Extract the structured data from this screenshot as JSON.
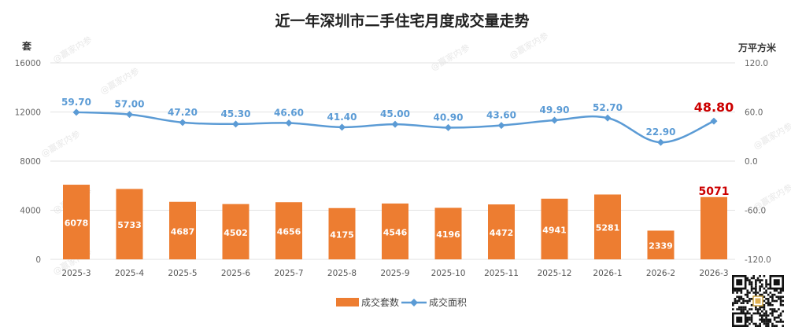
{
  "chart_data": {
    "type": "bar+line",
    "title": "近一年深圳市二手住宅月度成交量走势",
    "y_left_label": "套",
    "y_right_label": "万平方米",
    "y_left_range": [
      0,
      16000
    ],
    "y_left_ticks": [
      "0",
      "4000",
      "8000",
      "12000",
      "16000"
    ],
    "y_right_range": [
      -120,
      120
    ],
    "y_right_ticks": [
      "-120.0",
      "-60.0",
      "0.0",
      "60.0",
      "120.0"
    ],
    "categories": [
      "2025-3",
      "2025-4",
      "2025-5",
      "2025-6",
      "2025-7",
      "2025-8",
      "2025-9",
      "2025-10",
      "2025-11",
      "2025-12",
      "2026-1",
      "2026-2",
      "2026-3"
    ],
    "series": [
      {
        "name": "成交套数",
        "type": "bar",
        "axis": "left",
        "color": "#ed7d31",
        "values": [
          6078,
          5733,
          4687,
          4502,
          4656,
          4175,
          4546,
          4196,
          4472,
          4941,
          5281,
          2339,
          5071
        ],
        "labels": [
          "6078",
          "5733",
          "4687",
          "4502",
          "4656",
          "4175",
          "4546",
          "4196",
          "4472",
          "4941",
          "5281",
          "2339",
          "5071"
        ]
      },
      {
        "name": "成交面积",
        "type": "line",
        "axis": "right",
        "color": "#5b9bd5",
        "values": [
          59.7,
          57.0,
          47.2,
          45.3,
          46.6,
          41.4,
          45.0,
          40.9,
          43.6,
          49.9,
          52.7,
          22.9,
          48.8
        ],
        "labels": [
          "59.70",
          "57.00",
          "47.20",
          "45.30",
          "46.60",
          "41.40",
          "45.00",
          "40.90",
          "43.60",
          "49.90",
          "52.70",
          "22.90",
          "48.80"
        ]
      }
    ],
    "highlight_color": "#cc0000",
    "legend_position": "bottom",
    "grid": true
  },
  "watermark": "@赢家内参"
}
